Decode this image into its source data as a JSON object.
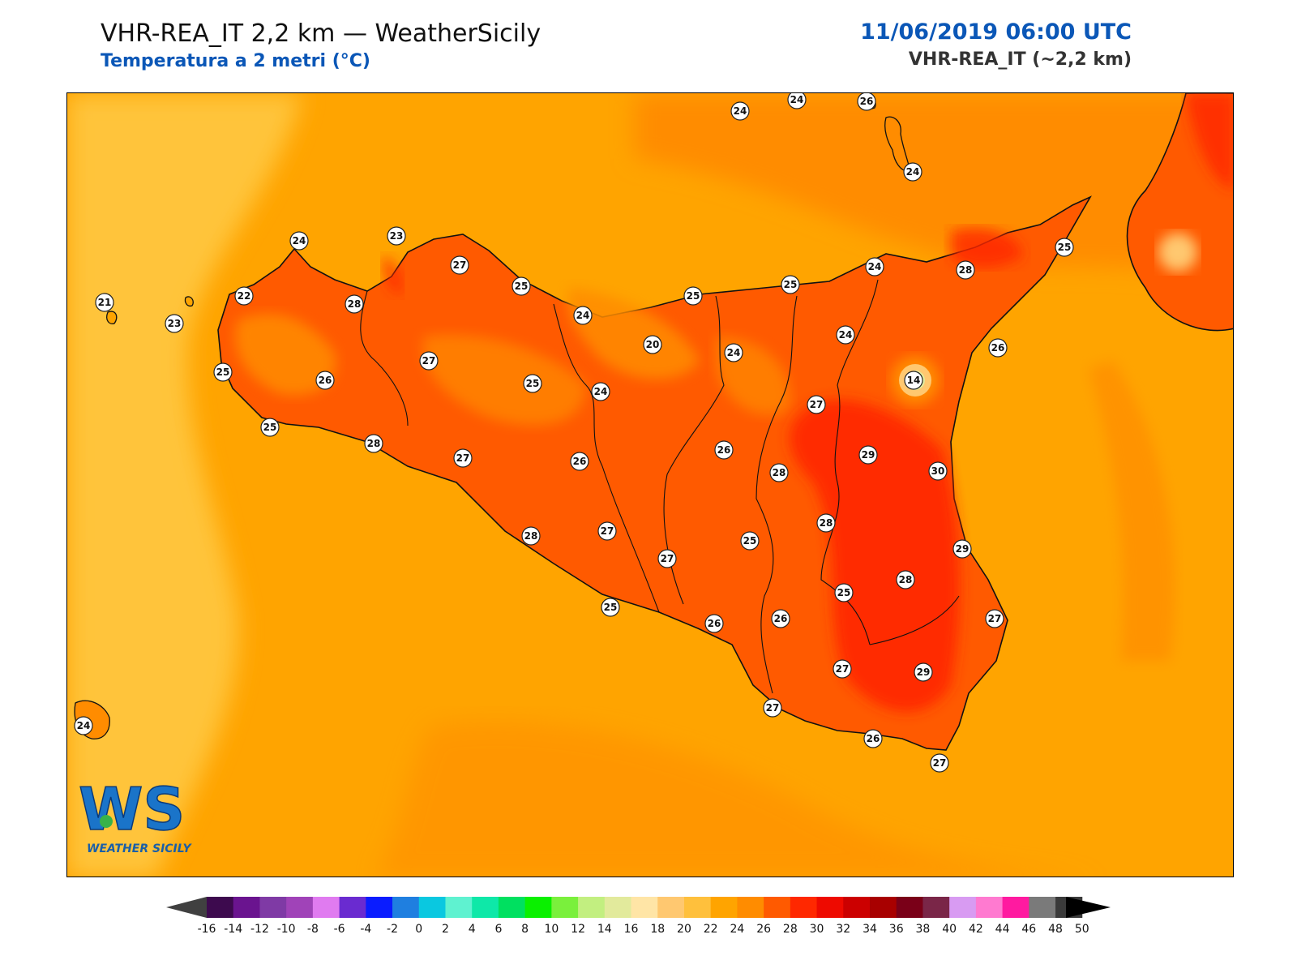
{
  "header": {
    "title": "VHR-REA_IT 2,2 km — WeatherSicily",
    "subtitle": "Temperatura a 2 metri (°C)",
    "datetime": "11/06/2019 06:00 UTC",
    "model": "VHR-REA_IT (~2,2 km)"
  },
  "logo": {
    "letters": "WS",
    "name": "WEATHER SICILY",
    "icon": "weathersicily-logo-icon"
  },
  "colors": {
    "sea_base": "#ffa400",
    "sea_west": "#ffc43a",
    "land_base": "#ff5a00",
    "hot": "#ff2800",
    "coast": "#111111"
  },
  "stations": [
    {
      "v": "24"
    },
    {
      "v": "24"
    },
    {
      "v": "26"
    },
    {
      "v": "24"
    },
    {
      "v": "24"
    },
    {
      "v": "23"
    },
    {
      "v": "27"
    },
    {
      "v": "25"
    },
    {
      "v": "25"
    },
    {
      "v": "25"
    },
    {
      "v": "24"
    },
    {
      "v": "28"
    },
    {
      "v": "25"
    },
    {
      "v": "21"
    },
    {
      "v": "22"
    },
    {
      "v": "28"
    },
    {
      "v": "23"
    },
    {
      "v": "24"
    },
    {
      "v": "20"
    },
    {
      "v": "24"
    },
    {
      "v": "24"
    },
    {
      "v": "27"
    },
    {
      "v": "25"
    },
    {
      "v": "26"
    },
    {
      "v": "25"
    },
    {
      "v": "24"
    },
    {
      "v": "14"
    },
    {
      "v": "26"
    },
    {
      "v": "25"
    },
    {
      "v": "28"
    },
    {
      "v": "27"
    },
    {
      "v": "26"
    },
    {
      "v": "26"
    },
    {
      "v": "27"
    },
    {
      "v": "28"
    },
    {
      "v": "29"
    },
    {
      "v": "30"
    },
    {
      "v": "28"
    },
    {
      "v": "27"
    },
    {
      "v": "27"
    },
    {
      "v": "25"
    },
    {
      "v": "28"
    },
    {
      "v": "29"
    },
    {
      "v": "25"
    },
    {
      "v": "26"
    },
    {
      "v": "26"
    },
    {
      "v": "25"
    },
    {
      "v": "28"
    },
    {
      "v": "27"
    },
    {
      "v": "27"
    },
    {
      "v": "29"
    },
    {
      "v": "24"
    },
    {
      "v": "27"
    },
    {
      "v": "26"
    },
    {
      "v": "27"
    }
  ],
  "colorbar": {
    "levels": [
      "-16",
      "-14",
      "-12",
      "-10",
      "-8",
      "-6",
      "-4",
      "-2",
      "0",
      "2",
      "4",
      "6",
      "8",
      "10",
      "12",
      "14",
      "16",
      "18",
      "20",
      "22",
      "24",
      "26",
      "28",
      "30",
      "32",
      "34",
      "36",
      "38",
      "40",
      "42",
      "44",
      "46",
      "48",
      "50"
    ],
    "colors": [
      "#3d0a4e",
      "#6a148f",
      "#7f3aa5",
      "#a043b8",
      "#e07bf0",
      "#6a2bd0",
      "#0a1cff",
      "#1f7fe0",
      "#0ac8e0",
      "#5ff2d0",
      "#0ee8a8",
      "#00e060",
      "#0af000",
      "#7af03c",
      "#c2ef80",
      "#e2ea9c",
      "#ffe5a6",
      "#ffc870",
      "#ffc03c",
      "#ffa400",
      "#ff8c00",
      "#ff5a00",
      "#ff2800",
      "#ee0a00",
      "#cc0000",
      "#a80000",
      "#7a0018",
      "#7a2648",
      "#d89bf2",
      "#ff7ad0",
      "#ff1aa0",
      "#7a7a7a",
      "#3a3a3a"
    ],
    "low_color": "#404040",
    "high_color": "#000000"
  }
}
